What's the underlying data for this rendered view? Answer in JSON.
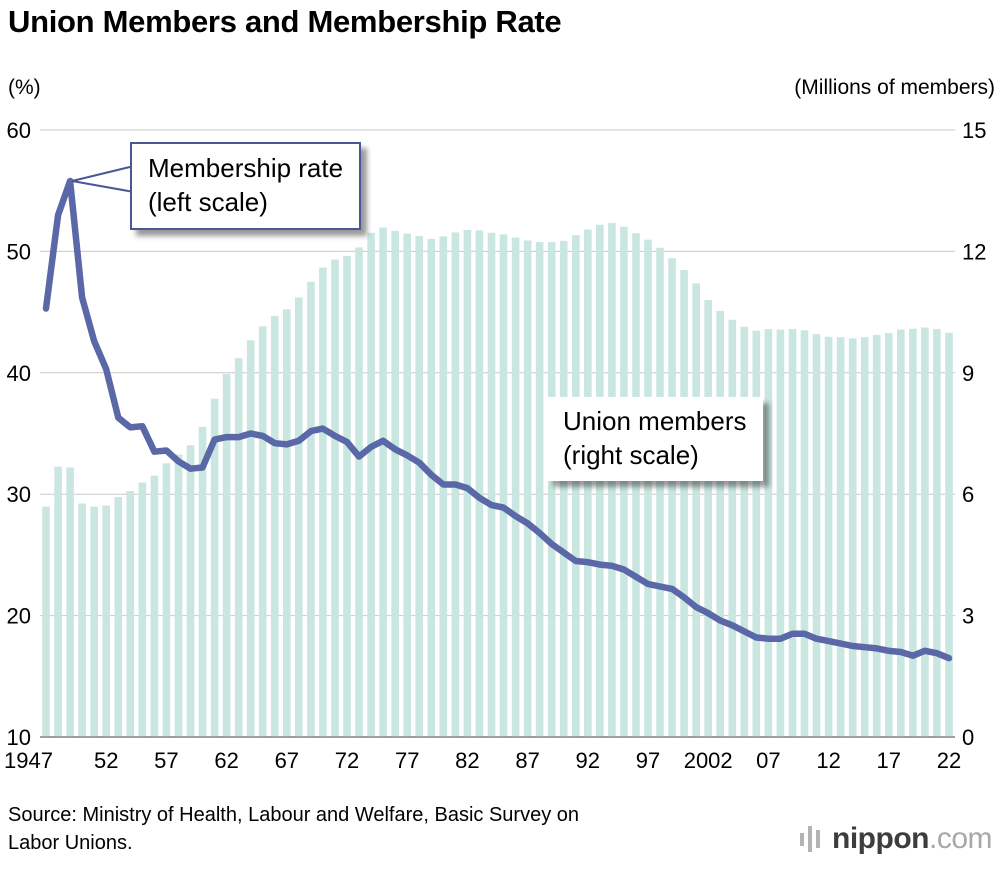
{
  "chart_data": {
    "type": "combo",
    "title": "Union Members and Membership Rate",
    "years": [
      1947,
      1948,
      1949,
      1950,
      1951,
      1952,
      1953,
      1954,
      1955,
      1956,
      1957,
      1958,
      1959,
      1960,
      1961,
      1962,
      1963,
      1964,
      1965,
      1966,
      1967,
      1968,
      1969,
      1970,
      1971,
      1972,
      1973,
      1974,
      1975,
      1976,
      1977,
      1978,
      1979,
      1980,
      1981,
      1982,
      1983,
      1984,
      1985,
      1986,
      1987,
      1988,
      1989,
      1990,
      1991,
      1992,
      1993,
      1994,
      1995,
      1996,
      1997,
      1998,
      1999,
      2000,
      2001,
      2002,
      2003,
      2004,
      2005,
      2006,
      2007,
      2008,
      2009,
      2010,
      2011,
      2012,
      2013,
      2014,
      2015,
      2016,
      2017,
      2018,
      2019,
      2020,
      2021,
      2022
    ],
    "series": [
      {
        "name": "Union members",
        "type": "bar",
        "axis": "right",
        "unit": "millions of members",
        "values": [
          5.69,
          6.68,
          6.66,
          5.77,
          5.69,
          5.72,
          5.93,
          6.08,
          6.29,
          6.46,
          6.76,
          6.98,
          7.21,
          7.66,
          8.36,
          8.97,
          9.36,
          9.8,
          10.15,
          10.4,
          10.57,
          10.86,
          11.25,
          11.6,
          11.8,
          11.89,
          12.1,
          12.46,
          12.59,
          12.51,
          12.44,
          12.38,
          12.31,
          12.37,
          12.47,
          12.53,
          12.52,
          12.46,
          12.42,
          12.34,
          12.27,
          12.23,
          12.23,
          12.26,
          12.4,
          12.54,
          12.66,
          12.7,
          12.61,
          12.45,
          12.29,
          12.09,
          11.83,
          11.54,
          11.21,
          10.8,
          10.53,
          10.31,
          10.14,
          10.04,
          10.08,
          10.07,
          10.08,
          10.05,
          9.96,
          9.89,
          9.88,
          9.85,
          9.88,
          9.94,
          9.98,
          10.07,
          10.09,
          10.12,
          10.08,
          9.99
        ]
      },
      {
        "name": "Membership rate",
        "type": "line",
        "axis": "left",
        "unit": "%",
        "values": [
          45.3,
          53.0,
          55.8,
          46.2,
          42.6,
          40.3,
          36.3,
          35.5,
          35.6,
          33.5,
          33.6,
          32.7,
          32.1,
          32.2,
          34.5,
          34.7,
          34.7,
          35.0,
          34.8,
          34.2,
          34.1,
          34.4,
          35.2,
          35.4,
          34.8,
          34.3,
          33.1,
          33.9,
          34.4,
          33.7,
          33.2,
          32.6,
          31.6,
          30.8,
          30.8,
          30.5,
          29.7,
          29.1,
          28.9,
          28.2,
          27.6,
          26.8,
          25.9,
          25.2,
          24.5,
          24.4,
          24.2,
          24.1,
          23.8,
          23.2,
          22.6,
          22.4,
          22.2,
          21.5,
          20.7,
          20.2,
          19.6,
          19.2,
          18.7,
          18.2,
          18.1,
          18.1,
          18.5,
          18.5,
          18.1,
          17.9,
          17.7,
          17.5,
          17.4,
          17.3,
          17.1,
          17.0,
          16.7,
          17.1,
          16.9,
          16.5
        ]
      }
    ],
    "left_axis": {
      "label": "(%)",
      "min": 10,
      "max": 60,
      "ticks": [
        60,
        50,
        40,
        30,
        20,
        10
      ]
    },
    "right_axis": {
      "label": "(Millions of members)",
      "min": 0,
      "max": 15,
      "ticks": [
        15,
        12,
        9,
        6,
        3,
        0
      ]
    },
    "x_axis": {
      "tick_years": [
        1947,
        1952,
        1957,
        1962,
        1967,
        1972,
        1977,
        1982,
        1987,
        1992,
        1997,
        2002,
        2007,
        2012,
        2017,
        2022
      ],
      "tick_labels": [
        "1947",
        "52",
        "57",
        "62",
        "67",
        "72",
        "77",
        "82",
        "87",
        "92",
        "97",
        "2002",
        "07",
        "12",
        "17",
        "22"
      ]
    },
    "grid": true,
    "legend_position": "annotations-on-plot",
    "colors": {
      "bar": "#c9e7e0",
      "line": "#5a68a8",
      "grid": "#c9c9c9",
      "baseline": "#8f8f8f",
      "callout_border": "#4a5795"
    }
  },
  "annotations": {
    "rate_line1": "Membership rate",
    "rate_line2": "(left scale)",
    "members_line1": "Union members",
    "members_line2": "(right scale)"
  },
  "source": {
    "line1": "Source: Ministry of Health, Labour and Welfare, Basic Survey on",
    "line2": "Labor Unions."
  },
  "logo": {
    "name": "nippon",
    "tld": ".com"
  }
}
